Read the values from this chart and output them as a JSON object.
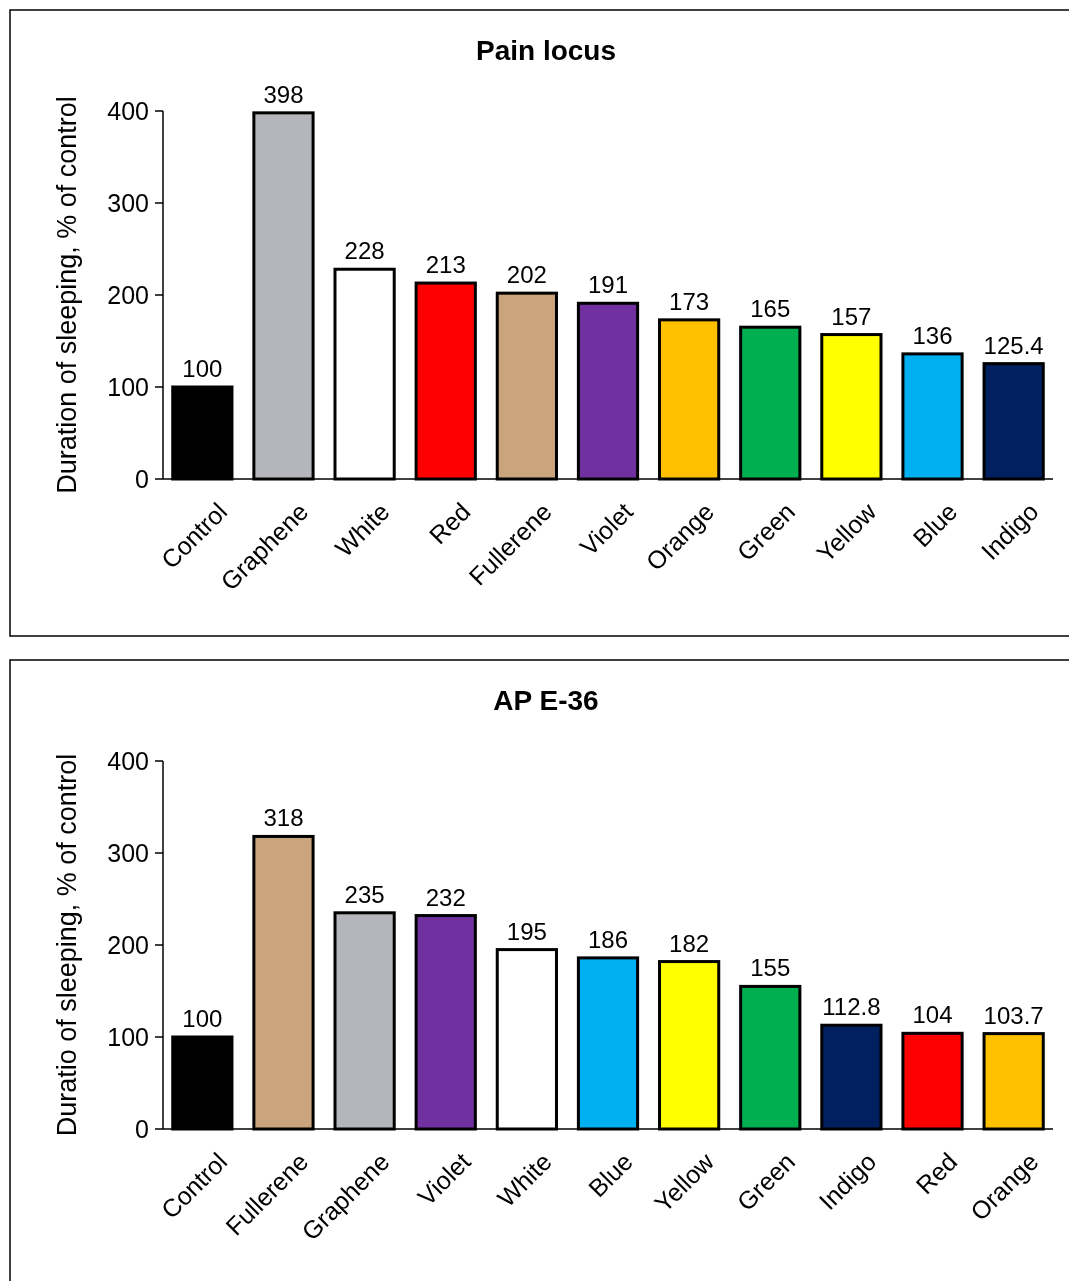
{
  "chart_data": [
    {
      "type": "bar",
      "title": "Pain locus",
      "ylabel": "Duration of sleeping, % of control",
      "categories": [
        "Control",
        "Graphene",
        "White",
        "Red",
        "Fullerene",
        "Violet",
        "Orange",
        "Green",
        "Yellow",
        "Blue",
        "Indigo"
      ],
      "values": [
        100,
        398,
        228,
        213,
        202,
        191,
        173,
        165,
        157,
        136,
        125.4
      ],
      "colors": [
        "#000000",
        "#b4b6bc",
        "#ffffff",
        "#ff0000",
        "#c9a47c",
        "#7030a0",
        "#ffc000",
        "#00b050",
        "#ffff00",
        "#00b0f0",
        "#002060"
      ],
      "ylim": [
        0,
        400
      ],
      "yticks": [
        0,
        100,
        200,
        300,
        400
      ],
      "data_labels": true
    },
    {
      "type": "bar",
      "title": "AP E-36",
      "ylabel": "Duratio of sleeping, % of control",
      "categories": [
        "Control",
        "Fullerene",
        "Graphene",
        "Violet",
        "White",
        "Blue",
        "Yellow",
        "Green",
        "Indigo",
        "Red",
        "Orange"
      ],
      "values": [
        100,
        318,
        235,
        232,
        195,
        186,
        182,
        155,
        112.8,
        104,
        103.7
      ],
      "colors": [
        "#000000",
        "#c9a47c",
        "#b4b6bc",
        "#7030a0",
        "#ffffff",
        "#00b0f0",
        "#ffff00",
        "#00b050",
        "#002060",
        "#ff0000",
        "#ffc000"
      ],
      "ylim": [
        0,
        400
      ],
      "yticks": [
        0,
        100,
        200,
        300,
        400
      ],
      "data_labels": true
    }
  ]
}
